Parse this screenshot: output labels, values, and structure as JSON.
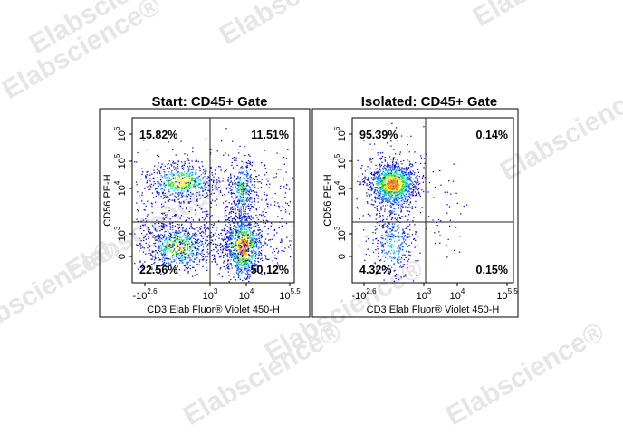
{
  "panels": [
    {
      "title": "Start:  CD45+ Gate",
      "x_label": "CD3 Elab Fluor® Violet 450-H",
      "y_label": "CD56 PE-H",
      "quadrants": {
        "top_left": "15.82%",
        "top_right": "11.51%",
        "bottom_left": "22.56%",
        "bottom_right": "50.12%"
      },
      "x_ticks": [
        {
          "base": "-10",
          "exp": "2.6"
        },
        {
          "base": "10",
          "exp": "3"
        },
        {
          "base": "10",
          "exp": "4"
        },
        {
          "base": "10",
          "exp": "5.5"
        }
      ],
      "y_ticks": [
        {
          "base": "10",
          "exp": "6"
        },
        {
          "base": "10",
          "exp": "5"
        },
        {
          "base": "10",
          "exp": "4"
        },
        {
          "base": "10",
          "exp": "3"
        },
        {
          "base": "0"
        }
      ]
    },
    {
      "title": "Isolated: CD45+ Gate",
      "x_label": "CD3 Elab Fluor® Violet 450-H",
      "y_label": "CD56 PE-H",
      "quadrants": {
        "top_left": "95.39%",
        "top_right": "0.14%",
        "bottom_left": "4.32%",
        "bottom_right": "0.15%"
      },
      "x_ticks": [
        {
          "base": "-10",
          "exp": "2.6"
        },
        {
          "base": "10",
          "exp": "3"
        },
        {
          "base": "10",
          "exp": "4"
        },
        {
          "base": "10",
          "exp": "5.5"
        }
      ],
      "y_ticks": [
        {
          "base": "10",
          "exp": "6"
        },
        {
          "base": "10",
          "exp": "5"
        },
        {
          "base": "10",
          "exp": "4"
        },
        {
          "base": "10",
          "exp": "3"
        },
        {
          "base": "0"
        }
      ]
    }
  ],
  "watermark": "Elabscience®"
}
